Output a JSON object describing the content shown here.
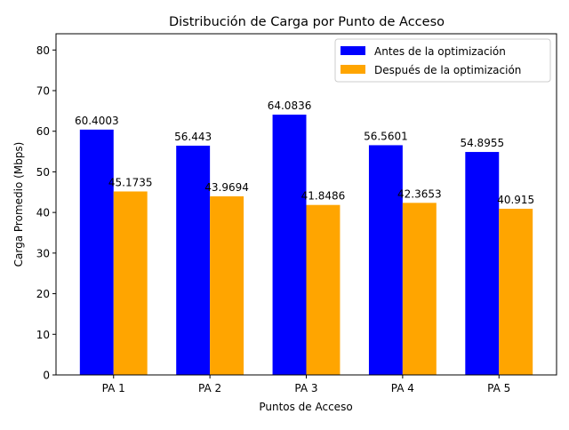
{
  "chart_data": {
    "type": "bar",
    "title": "Distribución de Carga por Punto de Acceso",
    "xlabel": "Puntos de Acceso",
    "ylabel": "Carga Promedio (Mbps)",
    "categories": [
      "PA 1",
      "PA 2",
      "PA 3",
      "PA 4",
      "PA 5"
    ],
    "ylim": [
      0,
      84
    ],
    "yticks": [
      0,
      10,
      20,
      30,
      40,
      50,
      60,
      70,
      80
    ],
    "series": [
      {
        "name": "Antes de la optimización",
        "color": "#0000ff",
        "values": [
          60.4003,
          56.443,
          64.0836,
          56.5601,
          54.8955
        ]
      },
      {
        "name": "Después de la optimización",
        "color": "#ffa500",
        "values": [
          45.1735,
          43.9694,
          41.8486,
          42.3653,
          40.915
        ]
      }
    ],
    "legend_position": "top-right",
    "grid": false,
    "data_labels": true
  }
}
